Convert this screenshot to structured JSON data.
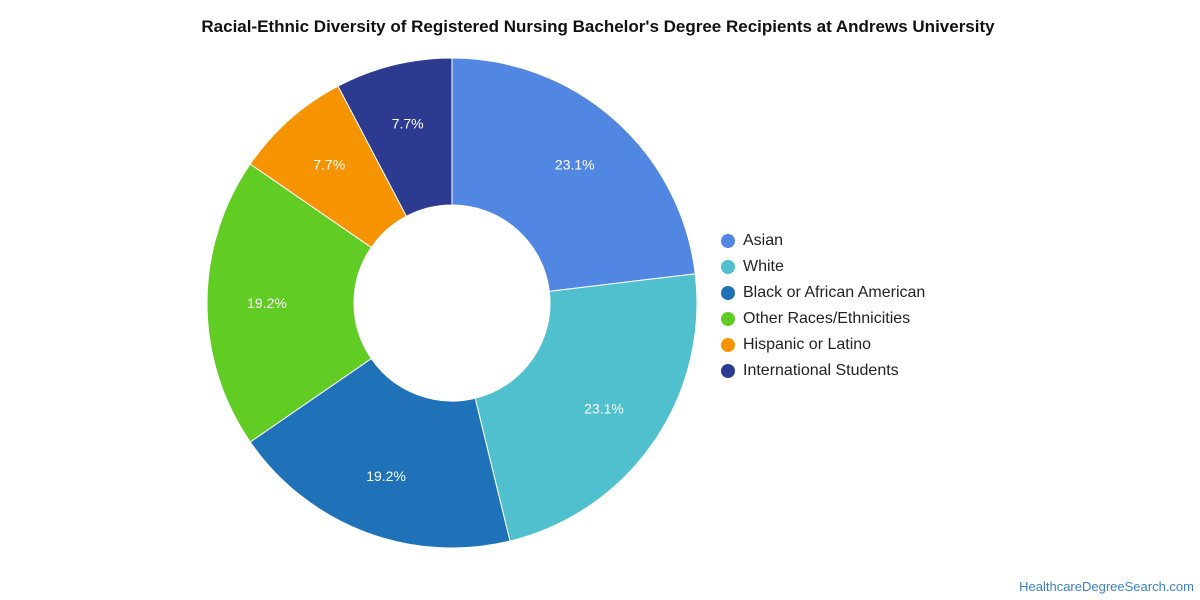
{
  "chart_data": {
    "type": "pie",
    "title": "Racial-Ethnic Diversity of Registered Nursing Bachelor's Degree Recipients at Andrews University",
    "categories": [
      "Asian",
      "White",
      "Black or African American",
      "Other Races/Ethnicities",
      "Hispanic or Latino",
      "International Students"
    ],
    "values": [
      23.1,
      23.1,
      19.2,
      19.2,
      7.7,
      7.7
    ],
    "labels": [
      "23.1%",
      "23.1%",
      "19.2%",
      "19.2%",
      "7.7%",
      "7.7%"
    ],
    "colors": [
      "#5286E3",
      "#51C0CE",
      "#1F72B8",
      "#61CC24",
      "#F59300",
      "#2C3A90"
    ],
    "donut": true,
    "legend_position": "right"
  },
  "footer": {
    "source": "HealthcareDegreeSearch.com"
  }
}
